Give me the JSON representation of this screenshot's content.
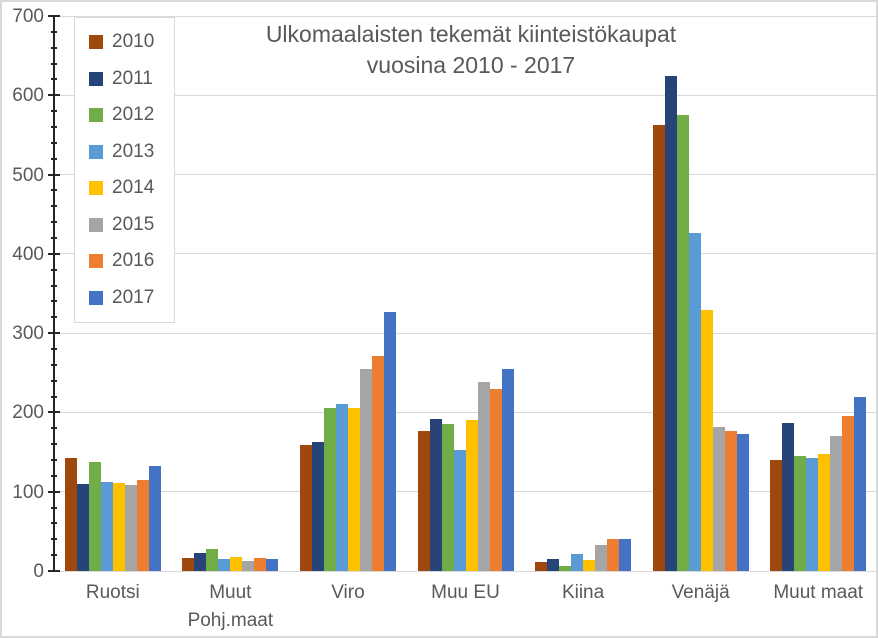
{
  "chart_data": {
    "type": "bar",
    "title": "Ulkomaalaisten tekemät kiinteistökaupat",
    "subtitle": "vuosina 2010 - 2017",
    "categories": [
      "Ruotsi",
      "Muut Pohj.maat",
      "Viro",
      "Muu EU",
      "Kiina",
      "Venäjä",
      "Muut maat"
    ],
    "series": [
      {
        "name": "2010",
        "color": "#9E480E",
        "values": [
          143,
          17,
          159,
          177,
          11,
          563,
          140
        ]
      },
      {
        "name": "2011",
        "color": "#264478",
        "values": [
          110,
          23,
          163,
          192,
          15,
          624,
          187
        ]
      },
      {
        "name": "2012",
        "color": "#70AD47",
        "values": [
          138,
          28,
          205,
          185,
          6,
          575,
          145
        ]
      },
      {
        "name": "2013",
        "color": "#5B9BD5",
        "values": [
          112,
          15,
          211,
          152,
          21,
          426,
          142
        ]
      },
      {
        "name": "2014",
        "color": "#FFC000",
        "values": [
          111,
          18,
          206,
          190,
          14,
          329,
          147
        ]
      },
      {
        "name": "2015",
        "color": "#A5A5A5",
        "values": [
          108,
          13,
          255,
          239,
          33,
          181,
          170
        ]
      },
      {
        "name": "2016",
        "color": "#ED7D31",
        "values": [
          115,
          16,
          271,
          230,
          40,
          176,
          195
        ]
      },
      {
        "name": "2017",
        "color": "#4472C4",
        "values": [
          132,
          15,
          327,
          255,
          40,
          173,
          219
        ]
      }
    ],
    "ylim": [
      0,
      700
    ],
    "ytick_labels": [
      "0",
      "100",
      "200",
      "300",
      "400",
      "500",
      "600",
      "700"
    ],
    "ytick_major_interval": 100,
    "ytick_minor_interval": 20,
    "grid": true,
    "legend_position": "upper-left"
  },
  "colors": {
    "text": "#595959",
    "axis_line": "#262626",
    "gridline": "#D9D9D9",
    "chart_border": "#D9D9D9",
    "background": "#FFFFFF"
  }
}
